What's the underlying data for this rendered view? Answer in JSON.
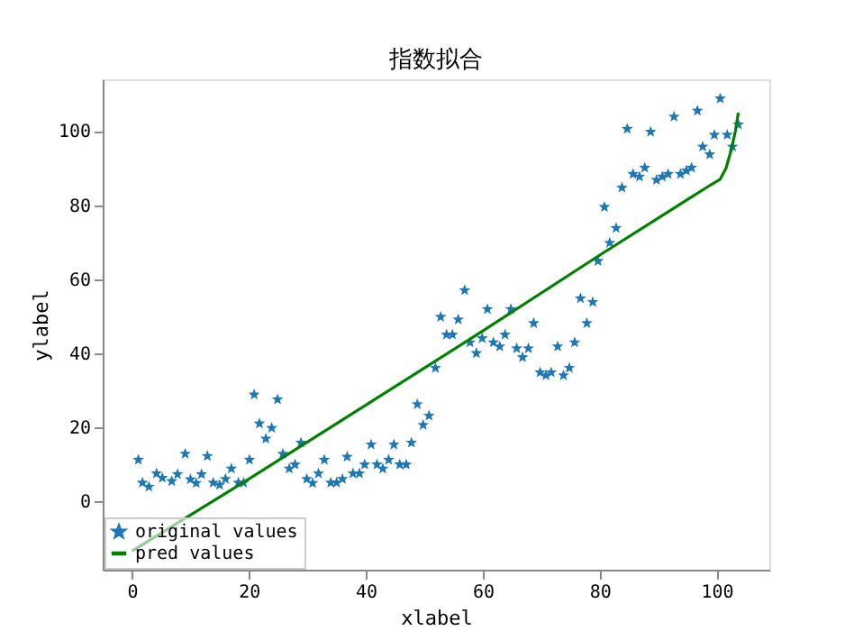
{
  "chart_data": {
    "type": "scatter",
    "title": "指数拟合",
    "xlabel": "xlabel",
    "ylabel": "ylabel",
    "xlim": [
      -5,
      109
    ],
    "ylim": [
      -18.5,
      114
    ],
    "xticks": [
      0,
      20,
      40,
      60,
      80,
      100
    ],
    "yticks": [
      0,
      20,
      40,
      60,
      80,
      100
    ],
    "grid": false,
    "legend": "bottom left",
    "series": [
      {
        "name": "original values",
        "marker": "star",
        "color": "#1f77b4",
        "x": [
          1.1,
          1.8,
          2.9,
          4.2,
          5.2,
          6.8,
          7.8,
          9.1,
          10,
          11,
          11.9,
          12.9,
          13.9,
          15,
          16,
          17,
          18.2,
          19.1,
          20.1,
          20.9,
          21.8,
          22.9,
          23.9,
          24.9,
          25.8,
          26.9,
          27.9,
          28.9,
          29.9,
          30.9,
          31.9,
          32.9,
          34,
          35,
          36,
          36.8,
          37.8,
          38.9,
          39.8,
          40.9,
          41.9,
          42.9,
          43.9,
          44.8,
          45.8,
          46.9,
          47.8,
          48.8,
          49.8,
          50.8,
          51.9,
          52.8,
          53.8,
          54.8,
          55.8,
          56.9,
          57.8,
          58.9,
          59.9,
          60.8,
          61.8,
          62.9,
          63.8,
          64.8,
          65.8,
          66.8,
          67.8,
          68.7,
          69.8,
          70.8,
          71.7,
          72.8,
          73.8,
          74.8,
          75.7,
          76.7,
          77.8,
          78.8,
          79.7,
          80.8,
          81.7,
          82.8,
          83.8,
          84.7,
          85.7,
          86.8,
          87.7,
          88.7,
          89.7,
          90.7,
          91.7,
          92.7,
          93.8,
          94.8,
          95.7,
          96.7,
          97.6,
          98.8,
          99.6,
          100.6,
          101.8,
          102.7,
          103.7
        ],
        "values": [
          11.2,
          5,
          3.9,
          7.5,
          6.3,
          5.4,
          7.3,
          12.8,
          5.9,
          4.9,
          7.3,
          12.2,
          5,
          4.4,
          6,
          8.8,
          5,
          5,
          11.2,
          28.8,
          21,
          16.9,
          19.8,
          27.5,
          12.8,
          8.8,
          9.9,
          15.8,
          6,
          4.9,
          7.5,
          11.2,
          5,
          5,
          6,
          12,
          7.5,
          7.5,
          9.9,
          15.3,
          9.9,
          8.8,
          11.2,
          15.3,
          9.9,
          9.9,
          15.8,
          26.2,
          20.6,
          23.1,
          36,
          49.8,
          45,
          45,
          49.1,
          57,
          42.9,
          40,
          44,
          51.9,
          42.9,
          41.8,
          45,
          51.9,
          41.3,
          38.9,
          41.3,
          48.1,
          34.8,
          34,
          34.8,
          41.8,
          34,
          36,
          42.9,
          54.8,
          48.1,
          53.8,
          64.9,
          79.5,
          69.8,
          73.8,
          84.7,
          100.6,
          88.4,
          87.7,
          90.1,
          99.8,
          86.8,
          87.7,
          88.4,
          103.9,
          88.4,
          89.3,
          90.1,
          105.5,
          95.8,
          93.7,
          99,
          108.8,
          99,
          95.8,
          101.8
        ]
      },
      {
        "name": "pred values",
        "type": "line",
        "marker": "none",
        "line_style": "solid",
        "color": "#008000",
        "x": [
          0,
          20,
          40,
          60,
          80,
          95,
          99,
          100.6,
          101.6,
          102.5,
          103.2,
          103.7
        ],
        "values": [
          -13.5,
          6,
          26,
          46,
          66.5,
          81.5,
          85.5,
          87,
          90,
          95,
          100,
          105
        ]
      }
    ]
  }
}
